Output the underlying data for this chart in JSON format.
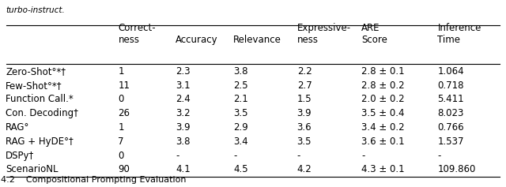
{
  "caption_top": "turbo-instruct.",
  "caption_bottom": "4.2    Compositional Prompting Evaluation",
  "col_headers": [
    [
      "Correct-\nness",
      "Accuracy",
      "Relevance",
      "Expressive-\nness",
      "ARE\nScore",
      "Inference\nTime"
    ]
  ],
  "row_labels": [
    "Zero-Shot°*†",
    "Few-Shot°*†",
    "Function Call.*",
    "Con. Decoding†",
    "RAG°",
    "RAG + HyDE°†",
    "DSPy†",
    "ScenarioNL"
  ],
  "data": [
    [
      "1",
      "2.3",
      "3.8",
      "2.2",
      "2.8 ± 0.1",
      "1.064"
    ],
    [
      "11",
      "3.1",
      "2.5",
      "2.7",
      "2.8 ± 0.2",
      "0.718"
    ],
    [
      "0",
      "2.4",
      "2.1",
      "1.5",
      "2.0 ± 0.2",
      "5.411"
    ],
    [
      "26",
      "3.2",
      "3.5",
      "3.9",
      "3.5 ± 0.4",
      "8.023"
    ],
    [
      "1",
      "3.9",
      "2.9",
      "3.6",
      "3.4 ± 0.2",
      "0.766"
    ],
    [
      "7",
      "3.8",
      "3.4",
      "3.5",
      "3.6 ± 0.1",
      "1.537"
    ],
    [
      "0",
      "-",
      "-",
      "-",
      "-",
      "-"
    ],
    [
      "90",
      "4.1",
      "4.5",
      "4.2",
      "4.3 ± 0.1",
      "109.860"
    ]
  ],
  "bg_color": "#ffffff",
  "text_color": "#000000",
  "font_size": 8.5,
  "header_font_size": 8.5
}
